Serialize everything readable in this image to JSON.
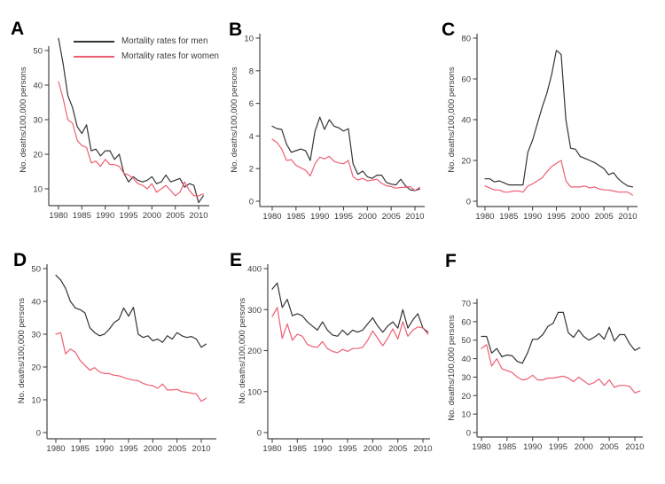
{
  "style": {
    "axis": "#474747",
    "text": "#3b3b3b",
    "background": "#ffffff"
  },
  "legend": {
    "men": "Mortality rates for men",
    "women": "Mortality rates for women"
  },
  "chart_data": [
    {
      "type": "line",
      "panel": "A",
      "title": "",
      "xlabel": "",
      "ylabel": "No. deaths/100,000 persons",
      "ylim": [
        5,
        55
      ],
      "xticks": [
        1980,
        1985,
        1990,
        1995,
        2000,
        2005,
        2010
      ],
      "yticks": [
        10,
        20,
        30,
        40,
        50
      ],
      "grid": false,
      "legend_position": "top-right-inside",
      "x": [
        1980,
        1981,
        1982,
        1983,
        1984,
        1985,
        1986,
        1987,
        1988,
        1989,
        1990,
        1991,
        1992,
        1993,
        1994,
        1995,
        1996,
        1997,
        1998,
        1999,
        2000,
        2001,
        2002,
        2003,
        2004,
        2005,
        2006,
        2007,
        2008,
        2009,
        2010,
        2011
      ],
      "series": [
        {
          "name": "Mortality rates for men",
          "color": "#343434",
          "values": [
            53.5,
            46,
            37,
            33.5,
            28,
            26,
            28.5,
            21,
            21.5,
            19.5,
            21,
            21,
            18.5,
            20,
            14.5,
            12,
            13.5,
            12.5,
            12,
            12.5,
            13.5,
            11.5,
            12,
            14,
            12,
            12.5,
            13,
            10.5,
            11.5,
            11,
            6,
            8
          ]
        },
        {
          "name": "Mortality rates for women",
          "color": "#ee5f73",
          "values": [
            41,
            36,
            30,
            29,
            24,
            22.5,
            22,
            17.5,
            18,
            16.5,
            18.5,
            17,
            17,
            16.5,
            14.5,
            14,
            13,
            11.5,
            11,
            10,
            11.5,
            9,
            10,
            11,
            9.5,
            8,
            9,
            12,
            9.5,
            8,
            8,
            8.5
          ]
        }
      ]
    },
    {
      "type": "line",
      "panel": "B",
      "title": "",
      "xlabel": "",
      "ylabel": "No. deaths/100,000 persons",
      "ylim": [
        0,
        10
      ],
      "xticks": [
        1980,
        1985,
        1990,
        1995,
        2000,
        2005,
        2010
      ],
      "yticks": [
        0,
        2,
        4,
        6,
        8,
        10
      ],
      "grid": false,
      "x": [
        1980,
        1981,
        1982,
        1983,
        1984,
        1985,
        1986,
        1987,
        1988,
        1989,
        1990,
        1991,
        1992,
        1993,
        1994,
        1995,
        1996,
        1997,
        1998,
        1999,
        2000,
        2001,
        2002,
        2003,
        2004,
        2005,
        2006,
        2007,
        2008,
        2009,
        2010,
        2011
      ],
      "series": [
        {
          "name": "Mortality rates for men",
          "color": "#343434",
          "values": [
            4.6,
            4.45,
            4.4,
            3.5,
            3.0,
            3.1,
            3.2,
            3.1,
            2.5,
            4.3,
            5.15,
            4.4,
            5.0,
            4.6,
            4.5,
            4.3,
            4.45,
            2.3,
            1.65,
            1.85,
            1.5,
            1.4,
            1.6,
            1.6,
            1.15,
            1.05,
            1.0,
            1.35,
            0.95,
            0.7,
            0.65,
            0.75
          ]
        },
        {
          "name": "Mortality rates for women",
          "color": "#ee5f73",
          "values": [
            3.8,
            3.6,
            3.2,
            2.5,
            2.55,
            2.2,
            2.05,
            1.9,
            1.55,
            2.3,
            2.7,
            2.6,
            2.75,
            2.45,
            2.35,
            2.3,
            2.5,
            1.5,
            1.3,
            1.4,
            1.25,
            1.3,
            1.35,
            1.1,
            0.95,
            0.9,
            0.8,
            0.85,
            0.85,
            0.9,
            0.65,
            0.85
          ]
        }
      ]
    },
    {
      "type": "line",
      "panel": "C",
      "title": "",
      "xlabel": "",
      "ylabel": "No. deaths/100,000 persons",
      "ylim": [
        0,
        80
      ],
      "xticks": [
        1980,
        1985,
        1990,
        1995,
        2000,
        2005,
        2010
      ],
      "yticks": [
        0,
        20,
        40,
        60,
        80
      ],
      "grid": false,
      "x": [
        1980,
        1981,
        1982,
        1983,
        1984,
        1985,
        1986,
        1987,
        1988,
        1989,
        1990,
        1991,
        1992,
        1993,
        1994,
        1995,
        1996,
        1997,
        1998,
        1999,
        2000,
        2001,
        2002,
        2003,
        2004,
        2005,
        2006,
        2007,
        2008,
        2009,
        2010,
        2011
      ],
      "series": [
        {
          "name": "Mortality rates for men",
          "color": "#343434",
          "values": [
            11,
            11,
            9.5,
            10,
            9,
            8,
            8,
            8,
            8,
            24,
            30,
            38,
            46,
            53,
            62,
            74,
            72,
            40,
            26,
            25.5,
            22,
            21,
            20,
            19,
            17.5,
            16,
            13,
            14,
            11,
            9,
            7.5,
            7
          ]
        },
        {
          "name": "Mortality rates for women",
          "color": "#ee5f73",
          "values": [
            7.5,
            6.5,
            5.5,
            5.5,
            4.5,
            4.5,
            5,
            5,
            4.5,
            7.5,
            8.5,
            10,
            11.5,
            14.5,
            17,
            18.5,
            20,
            10,
            7,
            7,
            7,
            7.5,
            6.5,
            7,
            6,
            5.5,
            5.5,
            5,
            4.5,
            4.5,
            4.5,
            3
          ]
        }
      ]
    },
    {
      "type": "line",
      "panel": "D",
      "title": "",
      "xlabel": "",
      "ylabel": "No. deaths/100,000 persons",
      "ylim": [
        0,
        50
      ],
      "xticks": [
        1980,
        1985,
        1990,
        1995,
        2000,
        2005,
        2010
      ],
      "yticks": [
        0,
        10,
        20,
        30,
        40,
        50
      ],
      "grid": false,
      "x": [
        1980,
        1981,
        1982,
        1983,
        1984,
        1985,
        1986,
        1987,
        1988,
        1989,
        1990,
        1991,
        1992,
        1993,
        1994,
        1995,
        1996,
        1997,
        1998,
        1999,
        2000,
        2001,
        2002,
        2003,
        2004,
        2005,
        2006,
        2007,
        2008,
        2009,
        2010,
        2011
      ],
      "series": [
        {
          "name": "Mortality rates for men",
          "color": "#343434",
          "values": [
            48,
            46.5,
            44,
            40,
            38,
            37.5,
            36.5,
            32,
            30.5,
            29.5,
            30,
            31.5,
            33.5,
            34.5,
            38,
            35.5,
            38.2,
            30,
            29,
            29.5,
            28,
            28.5,
            27.5,
            29.5,
            28.5,
            30.5,
            29.5,
            29,
            29.3,
            28.5,
            26,
            27
          ]
        },
        {
          "name": "Mortality rates for women",
          "color": "#ee5f73",
          "values": [
            30,
            30.5,
            24,
            25.5,
            24.5,
            22,
            20.5,
            19,
            19.8,
            18.5,
            18,
            18,
            17.5,
            17.3,
            16.8,
            16.3,
            16,
            15.8,
            15,
            14.5,
            14.3,
            13.5,
            14.8,
            13,
            13,
            13.2,
            12.5,
            12.3,
            12,
            11.8,
            9.5,
            10.5
          ]
        }
      ]
    },
    {
      "type": "line",
      "panel": "E",
      "title": "",
      "xlabel": "",
      "ylabel": "No. deaths/100,000 persons",
      "ylim": [
        0,
        400
      ],
      "xticks": [
        1980,
        1985,
        1990,
        1995,
        2000,
        2005,
        2010
      ],
      "yticks": [
        0,
        100,
        200,
        300,
        400
      ],
      "grid": false,
      "x": [
        1980,
        1981,
        1982,
        1983,
        1984,
        1985,
        1986,
        1987,
        1988,
        1989,
        1990,
        1991,
        1992,
        1993,
        1994,
        1995,
        1996,
        1997,
        1998,
        1999,
        2000,
        2001,
        2002,
        2003,
        2004,
        2005,
        2006,
        2007,
        2008,
        2009,
        2010,
        2011
      ],
      "series": [
        {
          "name": "Mortality rates for men",
          "color": "#343434",
          "values": [
            350,
            365,
            305,
            325,
            285,
            290,
            285,
            270,
            260,
            250,
            270,
            250,
            238,
            235,
            250,
            238,
            250,
            245,
            250,
            265,
            280,
            260,
            245,
            260,
            270,
            255,
            300,
            255,
            275,
            290,
            255,
            245
          ]
        },
        {
          "name": "Mortality rates for women",
          "color": "#ee5f73",
          "values": [
            283,
            305,
            230,
            265,
            225,
            240,
            235,
            215,
            210,
            208,
            222,
            205,
            198,
            195,
            203,
            198,
            205,
            205,
            208,
            225,
            248,
            230,
            212,
            230,
            253,
            228,
            270,
            235,
            250,
            258,
            255,
            240
          ]
        }
      ]
    },
    {
      "type": "line",
      "panel": "F",
      "title": "",
      "xlabel": "",
      "ylabel": "No. deaths/100,000 persons",
      "ylim": [
        0,
        70
      ],
      "xticks": [
        1980,
        1985,
        1990,
        1995,
        2000,
        2005,
        2010
      ],
      "yticks": [
        0,
        10,
        20,
        30,
        40,
        50,
        60,
        70
      ],
      "grid": false,
      "x": [
        1980,
        1981,
        1982,
        1983,
        1984,
        1985,
        1986,
        1987,
        1988,
        1989,
        1990,
        1991,
        1992,
        1993,
        1994,
        1995,
        1996,
        1997,
        1998,
        1999,
        2000,
        2001,
        2002,
        2003,
        2004,
        2005,
        2006,
        2007,
        2008,
        2009,
        2010,
        2011
      ],
      "series": [
        {
          "name": "Mortality rates for men",
          "color": "#343434",
          "values": [
            52,
            52,
            43,
            45.5,
            41,
            42,
            41.5,
            38.5,
            37.5,
            43,
            50.5,
            50.5,
            53,
            57.5,
            59,
            65,
            65,
            54,
            51.5,
            55.5,
            52,
            50,
            51.5,
            53.5,
            50.5,
            57,
            49.5,
            53,
            53,
            48,
            44.5,
            46
          ]
        },
        {
          "name": "Mortality rates for women",
          "color": "#ee5f73",
          "values": [
            45.5,
            47.5,
            36,
            40,
            34.5,
            33.5,
            32.5,
            30,
            28.5,
            29,
            31,
            28.5,
            28.5,
            29.5,
            29.5,
            30,
            30.5,
            29.5,
            27.5,
            30,
            28,
            26,
            27,
            29,
            25.5,
            28.5,
            24.5,
            25.5,
            25.5,
            25,
            21.5,
            22.5
          ]
        }
      ]
    }
  ]
}
